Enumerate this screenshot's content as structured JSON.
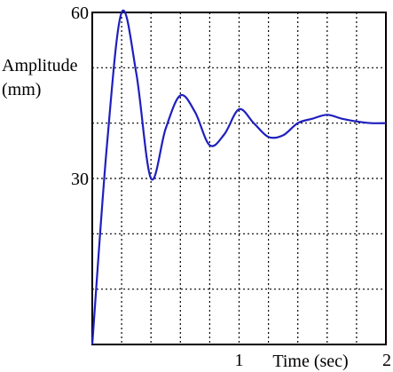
{
  "chart_data": {
    "type": "line",
    "title": "",
    "xlabel": "Time (sec)",
    "ylabel": [
      "Amplitude",
      "(mm)"
    ],
    "xlim": [
      0,
      2
    ],
    "ylim": [
      0,
      60
    ],
    "x_tick_labels": [
      {
        "value": 1,
        "label": "1"
      },
      {
        "value": 2,
        "label": "2"
      }
    ],
    "y_tick_labels": [
      {
        "value": 30,
        "label": "30"
      },
      {
        "value": 60,
        "label": "60"
      }
    ],
    "grid": true,
    "x_grid_step": 0.2,
    "y_grid_step": 10,
    "series": [
      {
        "color": "#1f1fbf",
        "x": [
          0,
          0.1,
          0.2,
          0.3,
          0.4,
          0.5,
          0.6,
          0.7,
          0.8,
          0.9,
          1.0,
          1.1,
          1.2,
          1.3,
          1.4,
          1.5,
          1.6,
          1.7,
          1.8,
          1.9,
          2.0
        ],
        "y": [
          0,
          36,
          60,
          49,
          30,
          39,
          45,
          42,
          36,
          38,
          42.5,
          40,
          37.5,
          37.8,
          40,
          40.8,
          41.5,
          40.8,
          40.3,
          40,
          40
        ]
      }
    ]
  }
}
